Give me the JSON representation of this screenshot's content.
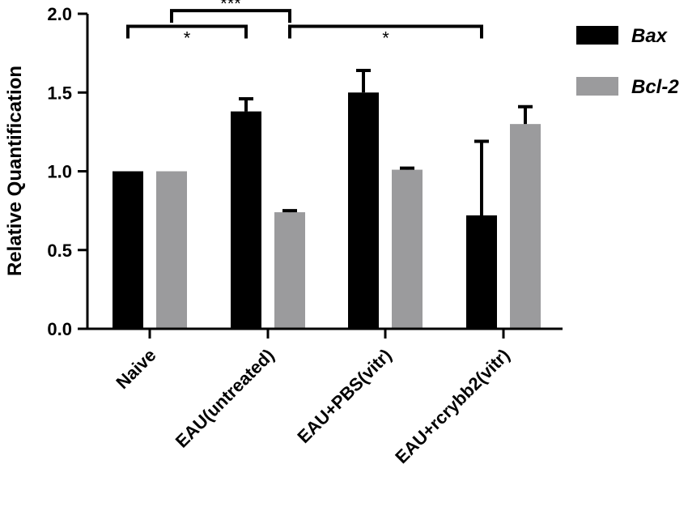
{
  "chart_data": {
    "type": "bar",
    "title": "",
    "xlabel": "",
    "ylabel": "Relative Quantification",
    "ylim": [
      0,
      2.0
    ],
    "yticks": [
      "0.0",
      "0.5",
      "1.0",
      "1.5",
      "2.0"
    ],
    "categories": [
      "Naive",
      "EAU(untreated)",
      "EAU+PBS(vitr)",
      "EAU+rcrybb2(vitr)"
    ],
    "series": [
      {
        "name": "Bax",
        "color": "#000000",
        "values": [
          1.0,
          1.38,
          1.5,
          0.72
        ],
        "errors": [
          0,
          0.08,
          0.14,
          0.47
        ]
      },
      {
        "name": "Bcl-2",
        "color": "#9b9b9d",
        "values": [
          1.0,
          0.74,
          1.01,
          1.3
        ],
        "errors": [
          0,
          0.01,
          0.01,
          0.11
        ]
      }
    ],
    "legend_position": "top-right",
    "grid": false,
    "significance": [
      {
        "label": "*",
        "from": {
          "category": 0,
          "series": 0
        },
        "to": {
          "category": 1,
          "series": 0
        },
        "level": 1.92
      },
      {
        "label": "***",
        "from": {
          "category": 0,
          "series": 1
        },
        "to": {
          "category": 1,
          "series": 1
        },
        "level": 2.02
      },
      {
        "label": "*",
        "from": {
          "category": 1,
          "series": 1
        },
        "to": {
          "category": 3,
          "series": 0
        },
        "level": 1.92
      }
    ]
  }
}
